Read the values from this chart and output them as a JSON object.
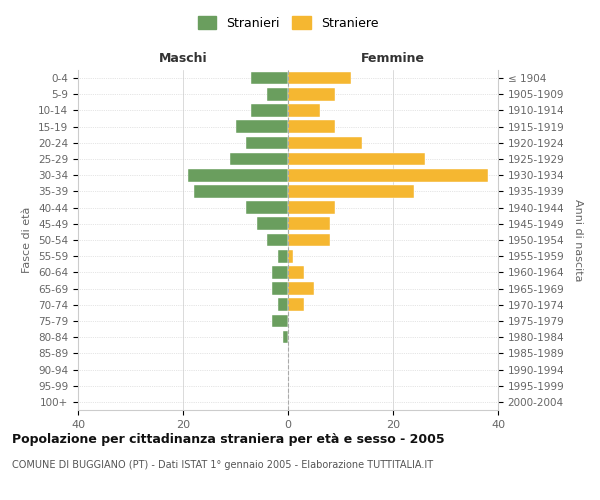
{
  "age_groups": [
    "0-4",
    "5-9",
    "10-14",
    "15-19",
    "20-24",
    "25-29",
    "30-34",
    "35-39",
    "40-44",
    "45-49",
    "50-54",
    "55-59",
    "60-64",
    "65-69",
    "70-74",
    "75-79",
    "80-84",
    "85-89",
    "90-94",
    "95-99",
    "100+"
  ],
  "birth_years": [
    "2000-2004",
    "1995-1999",
    "1990-1994",
    "1985-1989",
    "1980-1984",
    "1975-1979",
    "1970-1974",
    "1965-1969",
    "1960-1964",
    "1955-1959",
    "1950-1954",
    "1945-1949",
    "1940-1944",
    "1935-1939",
    "1930-1934",
    "1925-1929",
    "1920-1924",
    "1915-1919",
    "1910-1914",
    "1905-1909",
    "≤ 1904"
  ],
  "maschi": [
    7,
    4,
    7,
    10,
    8,
    11,
    19,
    18,
    8,
    6,
    4,
    2,
    3,
    3,
    2,
    3,
    1,
    0,
    0,
    0,
    0
  ],
  "femmine": [
    12,
    9,
    6,
    9,
    14,
    26,
    38,
    24,
    9,
    8,
    8,
    1,
    3,
    5,
    3,
    0,
    0,
    0,
    0,
    0,
    0
  ],
  "color_maschi": "#6a9e5e",
  "color_femmine": "#f5b731",
  "title": "Popolazione per cittadinanza straniera per età e sesso - 2005",
  "subtitle": "COMUNE DI BUGGIANO (PT) - Dati ISTAT 1° gennaio 2005 - Elaborazione TUTTITALIA.IT",
  "xlabel_left": "Maschi",
  "xlabel_right": "Femmine",
  "ylabel_left": "Fasce di età",
  "ylabel_right": "Anni di nascita",
  "legend_maschi": "Stranieri",
  "legend_femmine": "Straniere",
  "xlim": 40,
  "background_color": "#ffffff",
  "grid_color": "#cccccc"
}
